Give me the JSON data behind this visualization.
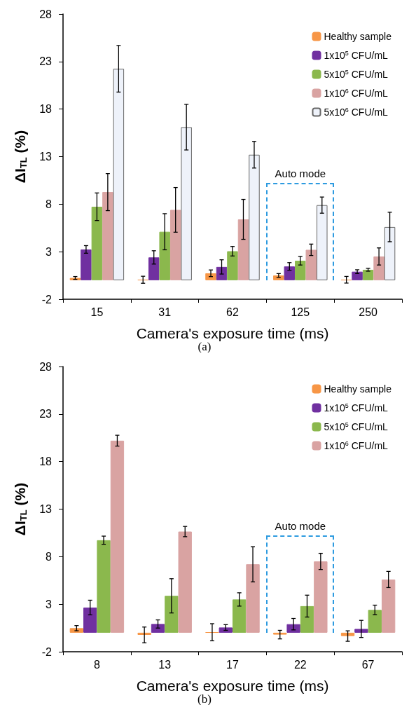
{
  "chart_data": [
    {
      "type": "bar",
      "ylabel": "ΔI$_{TL}$ (%)",
      "xlabel": "Camera's exposure time (ms)",
      "categories": [
        "15",
        "31",
        "62",
        "125",
        "250"
      ],
      "ylim": [
        -2,
        28
      ],
      "yticks": [
        -2,
        3,
        8,
        13,
        18,
        23,
        28
      ],
      "grid": false,
      "legend": "top right",
      "annotations": [
        "Auto mode",
        "(a)"
      ],
      "series": [
        {
          "name": "Healthy sample",
          "color": "#f79646",
          "values": [
            0.24,
            0.05,
            0.73,
            0.5,
            0.05
          ],
          "errors": [
            0.15,
            0.37,
            0.35,
            0.2,
            0.35
          ]
        },
        {
          "name": "1x10$^{5}$ CFU/mL",
          "color": "#7030a0",
          "values": [
            3.24,
            2.4,
            1.4,
            1.45,
            0.9
          ],
          "errors": [
            0.4,
            0.7,
            0.75,
            0.4,
            0.2
          ]
        },
        {
          "name": "5x10$^{5}$ CFU/mL",
          "color": "#8bb84d",
          "values": [
            7.73,
            5.1,
            3.05,
            2.05,
            1.1
          ],
          "errors": [
            1.45,
            1.9,
            0.5,
            0.45,
            0.15
          ]
        },
        {
          "name": "1x10$^{6}$ CFU/mL",
          "color": "#d9a3a2",
          "values": [
            9.27,
            7.4,
            6.4,
            3.2,
            2.5
          ],
          "errors": [
            1.95,
            2.35,
            2.1,
            0.6,
            0.9
          ]
        },
        {
          "name": "5x10$^{6}$ CFU/mL",
          "color": "#eef2fa",
          "values": [
            22.24,
            16.1,
            13.2,
            7.9,
            5.6
          ],
          "errors": [
            2.45,
            2.4,
            1.4,
            0.85,
            1.55
          ]
        }
      ]
    },
    {
      "type": "bar",
      "ylabel": "ΔI$_{TL}$ (%)",
      "xlabel": "Camera's exposure time (ms)",
      "categories": [
        "8",
        "13",
        "17",
        "22",
        "67"
      ],
      "ylim": [
        -2,
        28
      ],
      "yticks": [
        -2,
        3,
        8,
        13,
        18,
        23,
        28
      ],
      "grid": false,
      "legend": "top right",
      "annotations": [
        "Auto mode",
        "(b)"
      ],
      "series": [
        {
          "name": "Healthy sample",
          "color": "#f79646",
          "values": [
            0.48,
            -0.23,
            0.05,
            -0.2,
            -0.35
          ],
          "errors": [
            0.27,
            0.83,
            0.9,
            0.45,
            0.55
          ]
        },
        {
          "name": "1x10$^{5}$ CFU/mL",
          "color": "#7030a0",
          "values": [
            2.65,
            0.92,
            0.55,
            0.9,
            0.4
          ],
          "errors": [
            0.77,
            0.43,
            0.3,
            0.6,
            0.9
          ]
        },
        {
          "name": "5x10$^{5}$ CFU/mL",
          "color": "#8bb84d",
          "values": [
            9.73,
            3.88,
            3.5,
            2.8,
            2.4
          ],
          "errors": [
            0.43,
            1.8,
            0.7,
            1.15,
            0.5
          ]
        },
        {
          "name": "1x10$^{6}$ CFU/mL",
          "color": "#d9a3a2",
          "values": [
            20.2,
            10.64,
            7.2,
            7.5,
            5.6
          ],
          "errors": [
            0.57,
            0.54,
            1.85,
            0.85,
            0.85
          ]
        }
      ]
    }
  ]
}
